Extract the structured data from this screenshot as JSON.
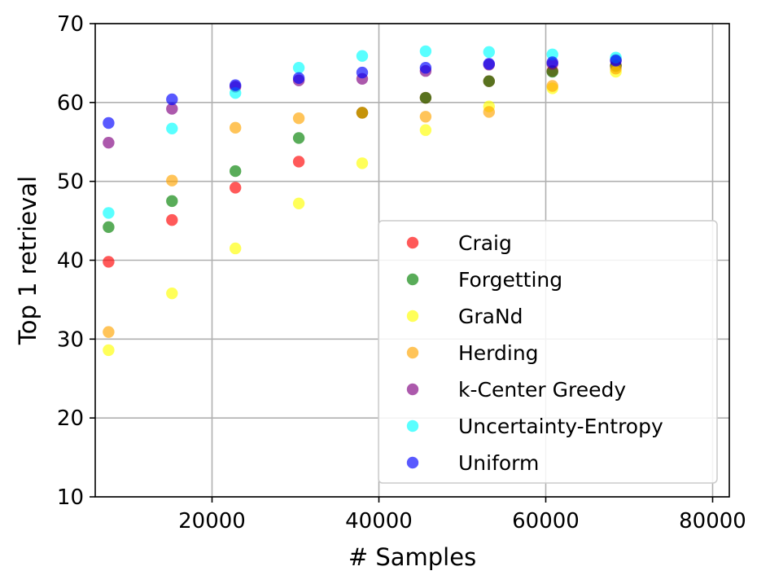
{
  "chart_data": {
    "type": "scatter",
    "xlabel": "# Samples",
    "ylabel": "Top 1 retrieval",
    "xlim": [
      6000,
      82000
    ],
    "ylim": [
      10,
      70
    ],
    "xticks": [
      20000,
      40000,
      60000,
      80000
    ],
    "yticks": [
      10,
      20,
      30,
      40,
      50,
      60,
      70
    ],
    "grid": true,
    "legend_position": "lower-right",
    "series": [
      {
        "name": "Craig",
        "color": "#ff0000",
        "x": [
          7600,
          15200,
          22800,
          30400,
          38000,
          45600,
          53200,
          60800,
          68400
        ],
        "y": [
          39.8,
          45.1,
          49.2,
          52.5,
          58.7,
          60.6,
          62.7,
          64.0,
          64.7
        ]
      },
      {
        "name": "Forgetting",
        "color": "#008000",
        "x": [
          7600,
          15200,
          22800,
          30400,
          38000,
          45600,
          53200,
          60800,
          68400
        ],
        "y": [
          44.2,
          47.5,
          51.3,
          55.5,
          58.7,
          60.6,
          62.7,
          63.9,
          64.6
        ]
      },
      {
        "name": "GraNd",
        "color": "#ffff00",
        "x": [
          7600,
          15200,
          22800,
          30400,
          38000,
          45600,
          53200,
          60800,
          68400
        ],
        "y": [
          28.6,
          35.8,
          41.5,
          47.2,
          52.3,
          56.5,
          59.5,
          61.8,
          63.9
        ]
      },
      {
        "name": "Herding",
        "color": "#ffa500",
        "x": [
          7600,
          15200,
          22800,
          30400,
          38000,
          45600,
          53200,
          60800,
          68400
        ],
        "y": [
          30.9,
          50.1,
          56.8,
          58.0,
          58.7,
          58.2,
          58.8,
          62.1,
          64.3
        ]
      },
      {
        "name": "k-Center Greedy",
        "color": "#800080",
        "x": [
          7600,
          15200,
          22800,
          30400,
          38000,
          45600,
          53200,
          60800,
          68400
        ],
        "y": [
          54.9,
          59.2,
          62.0,
          62.8,
          63.0,
          64.0,
          64.8,
          64.9,
          65.4
        ]
      },
      {
        "name": "Uncertainty-Entropy",
        "color": "#00ffff",
        "x": [
          7600,
          15200,
          22800,
          30400,
          38000,
          45600,
          53200,
          60800,
          68400
        ],
        "y": [
          46.0,
          56.7,
          61.2,
          64.4,
          65.9,
          66.5,
          66.4,
          66.1,
          65.7
        ]
      },
      {
        "name": "Uniform",
        "color": "#0000ff",
        "x": [
          7600,
          15200,
          22800,
          30400,
          38000,
          45600,
          53200,
          60800,
          68400
        ],
        "y": [
          57.4,
          60.4,
          62.2,
          63.1,
          63.8,
          64.4,
          64.9,
          65.1,
          65.3
        ]
      }
    ]
  }
}
